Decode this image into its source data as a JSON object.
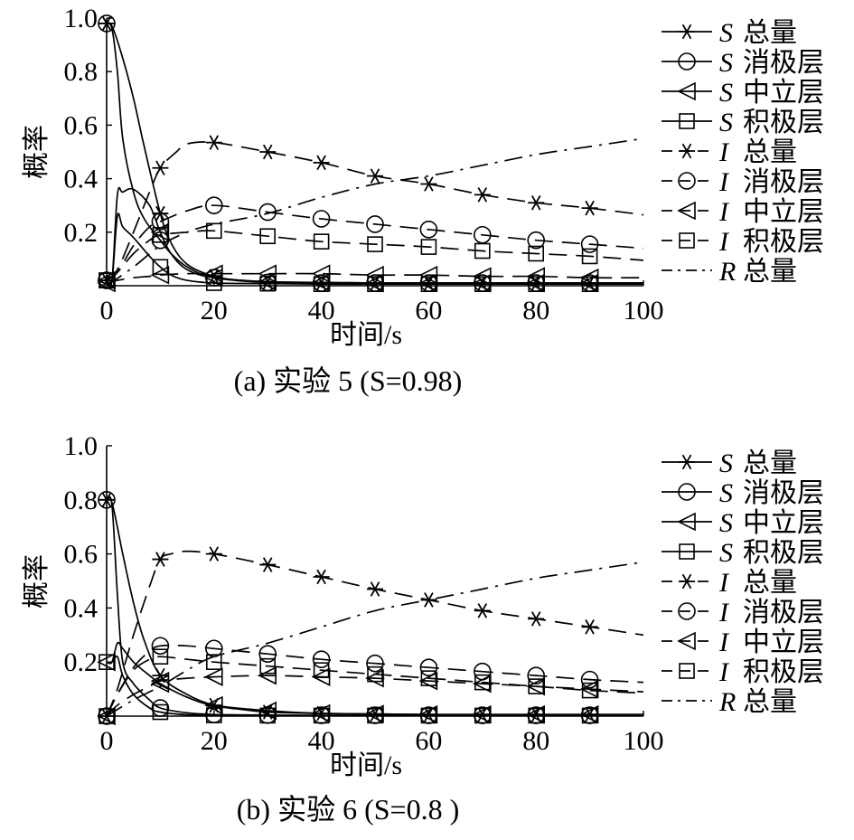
{
  "chart_data": [
    {
      "type": "line",
      "panel": "a",
      "title": "(a) 实验 5 (S=0.98)",
      "xlabel": "时间/s",
      "ylabel": "概率",
      "xlim": [
        0,
        100
      ],
      "ylim": [
        0,
        1.0
      ],
      "xticks": [
        "0",
        "20",
        "40",
        "60",
        "80",
        "100"
      ],
      "yticks": [
        "0.2",
        "0.4",
        "0.6",
        "0.8",
        "1.0"
      ],
      "legend_position": "right",
      "series": [
        {
          "key": "S_total",
          "var": "S",
          "name": "总量",
          "line": "solid",
          "marker": "asterisk",
          "x": [
            0,
            1,
            3,
            5,
            7,
            10,
            12,
            15,
            20,
            25,
            30,
            40,
            50,
            60,
            70,
            80,
            90,
            100
          ],
          "y": [
            0.98,
            0.97,
            0.85,
            0.7,
            0.52,
            0.27,
            0.16,
            0.08,
            0.035,
            0.02,
            0.015,
            0.012,
            0.01,
            0.01,
            0.01,
            0.01,
            0.01,
            0.01
          ]
        },
        {
          "key": "S_neg",
          "var": "S",
          "name": "消极层",
          "line": "solid",
          "marker": "circle",
          "x": [
            0,
            1,
            2,
            3,
            5,
            7,
            10,
            12,
            15,
            20,
            30,
            40,
            50,
            60,
            70,
            80,
            90,
            100
          ],
          "y": [
            0.98,
            0.96,
            0.8,
            0.55,
            0.35,
            0.25,
            0.17,
            0.12,
            0.07,
            0.03,
            0.012,
            0.01,
            0.01,
            0.01,
            0.01,
            0.01,
            0.01,
            0.01
          ]
        },
        {
          "key": "S_neu",
          "var": "S",
          "name": "中立层",
          "line": "solid",
          "marker": "triangle-left",
          "x": [
            0,
            1,
            2,
            3,
            5,
            8,
            10,
            12,
            15,
            20,
            30,
            40,
            50,
            60,
            70,
            80,
            90,
            100
          ],
          "y": [
            0.02,
            0.02,
            0.34,
            0.35,
            0.36,
            0.3,
            0.2,
            0.12,
            0.06,
            0.03,
            0.015,
            0.012,
            0.01,
            0.01,
            0.01,
            0.01,
            0.01,
            0.01
          ]
        },
        {
          "key": "S_pos",
          "var": "S",
          "name": "积极层",
          "line": "solid",
          "marker": "square",
          "x": [
            0,
            1,
            2,
            3,
            5,
            8,
            10,
            12,
            15,
            20,
            30,
            40,
            50,
            60,
            70,
            80,
            90,
            100
          ],
          "y": [
            0.02,
            0.02,
            0.26,
            0.22,
            0.18,
            0.11,
            0.07,
            0.04,
            0.02,
            0.01,
            0.008,
            0.006,
            0.006,
            0.006,
            0.006,
            0.006,
            0.006,
            0.006
          ]
        },
        {
          "key": "I_total",
          "var": "I",
          "name": "总量",
          "line": "dashed",
          "marker": "asterisk",
          "x": [
            0,
            2,
            5,
            8,
            10,
            13,
            15,
            20,
            30,
            40,
            50,
            60,
            70,
            80,
            90,
            100
          ],
          "y": [
            0.02,
            0.06,
            0.2,
            0.35,
            0.44,
            0.5,
            0.53,
            0.535,
            0.5,
            0.46,
            0.41,
            0.38,
            0.34,
            0.31,
            0.29,
            0.265
          ]
        },
        {
          "key": "I_neg",
          "var": "I",
          "name": "消极层",
          "line": "dashed",
          "marker": "circle",
          "x": [
            0,
            2,
            5,
            8,
            10,
            15,
            20,
            30,
            40,
            50,
            60,
            70,
            80,
            90,
            100
          ],
          "y": [
            0.02,
            0.05,
            0.15,
            0.22,
            0.24,
            0.28,
            0.3,
            0.275,
            0.25,
            0.23,
            0.21,
            0.19,
            0.17,
            0.155,
            0.14
          ]
        },
        {
          "key": "I_neu",
          "var": "I",
          "name": "中立层",
          "line": "dashed",
          "marker": "triangle-left",
          "x": [
            0,
            2,
            5,
            8,
            10,
            15,
            20,
            30,
            40,
            50,
            60,
            70,
            80,
            90,
            100
          ],
          "y": [
            0.01,
            0.02,
            0.03,
            0.035,
            0.04,
            0.045,
            0.045,
            0.045,
            0.045,
            0.04,
            0.04,
            0.035,
            0.035,
            0.03,
            0.03
          ]
        },
        {
          "key": "I_pos",
          "var": "I",
          "name": "积极层",
          "line": "dashed",
          "marker": "square",
          "x": [
            0,
            2,
            5,
            8,
            10,
            15,
            20,
            30,
            40,
            50,
            60,
            70,
            80,
            90,
            100
          ],
          "y": [
            0.02,
            0.05,
            0.12,
            0.17,
            0.19,
            0.2,
            0.205,
            0.185,
            0.165,
            0.155,
            0.145,
            0.13,
            0.12,
            0.11,
            0.095
          ]
        },
        {
          "key": "R_total",
          "var": "R",
          "name": "总量",
          "line": "dashdot",
          "marker": "none",
          "x": [
            0,
            5,
            10,
            15,
            20,
            30,
            40,
            50,
            60,
            70,
            80,
            90,
            100
          ],
          "y": [
            0.0,
            0.07,
            0.15,
            0.2,
            0.23,
            0.27,
            0.33,
            0.38,
            0.41,
            0.45,
            0.49,
            0.52,
            0.55
          ]
        }
      ]
    },
    {
      "type": "line",
      "panel": "b",
      "title": "(b) 实验 6 (S=0.8 )",
      "xlabel": "时间/s",
      "ylabel": "概率",
      "xlim": [
        0,
        100
      ],
      "ylim": [
        0,
        1.0
      ],
      "xticks": [
        "0",
        "20",
        "40",
        "60",
        "80",
        "100"
      ],
      "yticks": [
        "0.2",
        "0.4",
        "0.6",
        "0.8",
        "1.0"
      ],
      "legend_position": "right",
      "series": [
        {
          "key": "S_total",
          "var": "S",
          "name": "总量",
          "line": "solid",
          "marker": "asterisk",
          "x": [
            0,
            1,
            3,
            5,
            7,
            10,
            15,
            20,
            25,
            30,
            40,
            50,
            60,
            70,
            80,
            90,
            100
          ],
          "y": [
            0.8,
            0.79,
            0.6,
            0.42,
            0.28,
            0.15,
            0.08,
            0.04,
            0.025,
            0.015,
            0.01,
            0.008,
            0.006,
            0.006,
            0.006,
            0.006,
            0.006
          ]
        },
        {
          "key": "S_neg",
          "var": "S",
          "name": "消极层",
          "line": "solid",
          "marker": "circle",
          "x": [
            0,
            1,
            2,
            3,
            5,
            8,
            10,
            15,
            20,
            30,
            40,
            50,
            60,
            70,
            80,
            90,
            100
          ],
          "y": [
            0.8,
            0.78,
            0.45,
            0.2,
            0.12,
            0.06,
            0.03,
            0.012,
            0.006,
            0.004,
            0.003,
            0.003,
            0.003,
            0.003,
            0.003,
            0.003,
            0.003
          ]
        },
        {
          "key": "S_neu",
          "var": "S",
          "name": "中立层",
          "line": "solid",
          "marker": "triangle-left",
          "x": [
            0,
            1,
            2,
            3,
            5,
            8,
            10,
            15,
            20,
            30,
            40,
            50,
            60,
            70,
            80,
            90,
            100
          ],
          "y": [
            0.2,
            0.2,
            0.27,
            0.25,
            0.2,
            0.15,
            0.12,
            0.07,
            0.04,
            0.02,
            0.01,
            0.008,
            0.006,
            0.006,
            0.006,
            0.006,
            0.006
          ]
        },
        {
          "key": "S_pos",
          "var": "S",
          "name": "积极层",
          "line": "solid",
          "marker": "square",
          "x": [
            0,
            1,
            2,
            3,
            5,
            8,
            10,
            15,
            20,
            30,
            40,
            50,
            60,
            70,
            80,
            90,
            100
          ],
          "y": [
            0.2,
            0.2,
            0.22,
            0.15,
            0.08,
            0.03,
            0.015,
            0.005,
            0.003,
            0.002,
            0.002,
            0.002,
            0.002,
            0.002,
            0.002,
            0.002,
            0.002
          ]
        },
        {
          "key": "I_total",
          "var": "I",
          "name": "总量",
          "line": "dashed",
          "marker": "asterisk",
          "x": [
            0,
            2,
            5,
            8,
            10,
            12,
            15,
            20,
            30,
            40,
            50,
            60,
            70,
            80,
            90,
            100
          ],
          "y": [
            0.0,
            0.1,
            0.3,
            0.48,
            0.58,
            0.6,
            0.61,
            0.6,
            0.56,
            0.515,
            0.47,
            0.43,
            0.39,
            0.36,
            0.33,
            0.3
          ]
        },
        {
          "key": "I_neg",
          "var": "I",
          "name": "消极层",
          "line": "dashed",
          "marker": "circle",
          "x": [
            0,
            2,
            5,
            8,
            10,
            15,
            20,
            30,
            40,
            50,
            60,
            70,
            80,
            90,
            100
          ],
          "y": [
            0.0,
            0.08,
            0.18,
            0.24,
            0.26,
            0.26,
            0.25,
            0.23,
            0.21,
            0.195,
            0.18,
            0.165,
            0.15,
            0.135,
            0.125
          ]
        },
        {
          "key": "I_neu",
          "var": "I",
          "name": "中立层",
          "line": "dashed",
          "marker": "triangle-left",
          "x": [
            0,
            2,
            5,
            8,
            10,
            15,
            20,
            30,
            40,
            50,
            60,
            70,
            80,
            90,
            100
          ],
          "y": [
            0.0,
            0.04,
            0.08,
            0.11,
            0.13,
            0.14,
            0.145,
            0.15,
            0.145,
            0.14,
            0.13,
            0.12,
            0.11,
            0.1,
            0.09
          ]
        },
        {
          "key": "I_pos",
          "var": "I",
          "name": "积极层",
          "line": "dashed",
          "marker": "square",
          "x": [
            0,
            2,
            5,
            8,
            10,
            15,
            20,
            30,
            40,
            50,
            60,
            70,
            80,
            90,
            100
          ],
          "y": [
            0.0,
            0.08,
            0.17,
            0.21,
            0.22,
            0.21,
            0.2,
            0.185,
            0.17,
            0.155,
            0.14,
            0.125,
            0.11,
            0.095,
            0.085
          ]
        },
        {
          "key": "R_total",
          "var": "R",
          "name": "总量",
          "line": "dashdot",
          "marker": "none",
          "x": [
            0,
            5,
            10,
            15,
            20,
            30,
            40,
            50,
            60,
            70,
            80,
            90,
            100
          ],
          "y": [
            0.0,
            0.06,
            0.11,
            0.17,
            0.22,
            0.27,
            0.33,
            0.39,
            0.43,
            0.47,
            0.51,
            0.54,
            0.57
          ]
        }
      ]
    }
  ]
}
